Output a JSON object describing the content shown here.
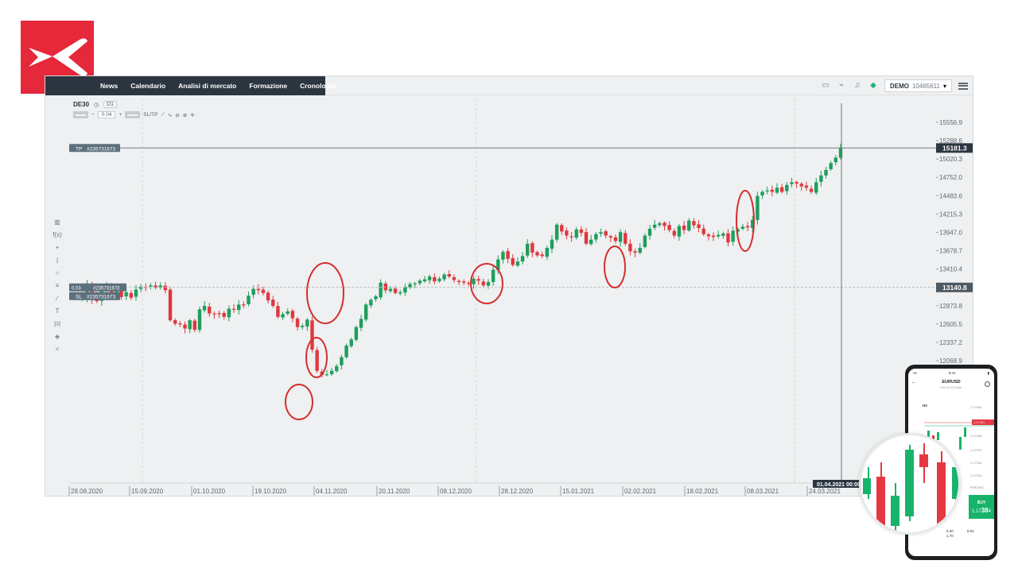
{
  "nav": {
    "tabs": [
      "News",
      "Calendario",
      "Analisi di mercato",
      "Formazione",
      "Cronologia"
    ]
  },
  "account": {
    "mode": "DEMO",
    "number": "10465611"
  },
  "toolbar": {
    "symbol": "DE30",
    "timeframe": "D1",
    "quantity": "0.04",
    "sltp": "SL/TP"
  },
  "chart": {
    "price_labels": [
      "15556.9",
      "15288.6",
      "15020.3",
      "14752.0",
      "14483.6",
      "14215.3",
      "13947.0",
      "13678.7",
      "13410.4",
      "12873.8",
      "12605.5",
      "12337.2",
      "12068.9"
    ],
    "current_price": "15181.3",
    "crosshair_price": "13140.8",
    "tp_label": "TP",
    "tp_order": "#235731673",
    "sl_label": "SL",
    "sl_order": "#235731673",
    "position_size": "0.03",
    "position_order": "#235731673",
    "date_labels": [
      "28.08.2020",
      "15.09.2020",
      "01.10.2020",
      "19.10.2020",
      "04.11.2020",
      "20.11.2020",
      "08.12.2020",
      "28.12.2020",
      "15.01.2021",
      "02.02.2021",
      "18.02.2021",
      "08.03.2021",
      "24.03.2021"
    ],
    "crosshair_date": "01.04.2021 00:00",
    "colors": {
      "up": "#1e9e5c",
      "down": "#e0383e",
      "circle": "#d42e2e",
      "bg": "#eef0f1"
    }
  },
  "chart_data": {
    "type": "candlestick",
    "instrument": "DE30",
    "timeframe": "D1",
    "x_range": [
      "28.08.2020",
      "01.04.2021"
    ],
    "ylim": [
      11900,
      15700
    ],
    "candles_close": [
      13010,
      13000,
      12990,
      13200,
      12960,
      12940,
      13120,
      13150,
      13030,
      13110,
      13000,
      13070,
      12990,
      13110,
      13150,
      13140,
      13170,
      13140,
      13170,
      13100,
      12660,
      12610,
      12600,
      12540,
      12660,
      12520,
      12820,
      12870,
      12760,
      12750,
      12760,
      12710,
      12830,
      12820,
      12890,
      12880,
      13020,
      13120,
      13100,
      13060,
      12950,
      12870,
      12710,
      12750,
      12790,
      12690,
      12560,
      12580,
      12670,
      12230,
      11920,
      11860,
      11870,
      11920,
      11990,
      12120,
      12290,
      12380,
      12560,
      12680,
      12890,
      12960,
      13010,
      13210,
      13100,
      13120,
      13060,
      13070,
      13150,
      13190,
      13200,
      13240,
      13260,
      13300,
      13230,
      13270,
      13330,
      13300,
      13250,
      13220,
      13210,
      13200,
      13270,
      13240,
      13170,
      13220,
      13400,
      13550,
      13660,
      13560,
      13470,
      13520,
      13600,
      13780,
      13650,
      13610,
      13600,
      13720,
      13840,
      14060,
      13960,
      13900,
      13880,
      13990,
      13940,
      13780,
      13840,
      13920,
      13950,
      13900,
      13870,
      13820,
      13950,
      13780,
      13670,
      13650,
      13720,
      13900,
      14000,
      14060,
      14080,
      14040,
      13980,
      13900,
      14040,
      13980,
      14120,
      14050,
      14010,
      13920,
      13890,
      13880,
      13910,
      13930,
      13800,
      13970,
      13990,
      14030,
      14020,
      14130,
      14480,
      14540,
      14560,
      14540,
      14600,
      14540,
      14640,
      14680,
      14660,
      14620,
      14600,
      14540,
      14680,
      14780,
      14860,
      14960,
      15040,
      15181
    ]
  }
}
